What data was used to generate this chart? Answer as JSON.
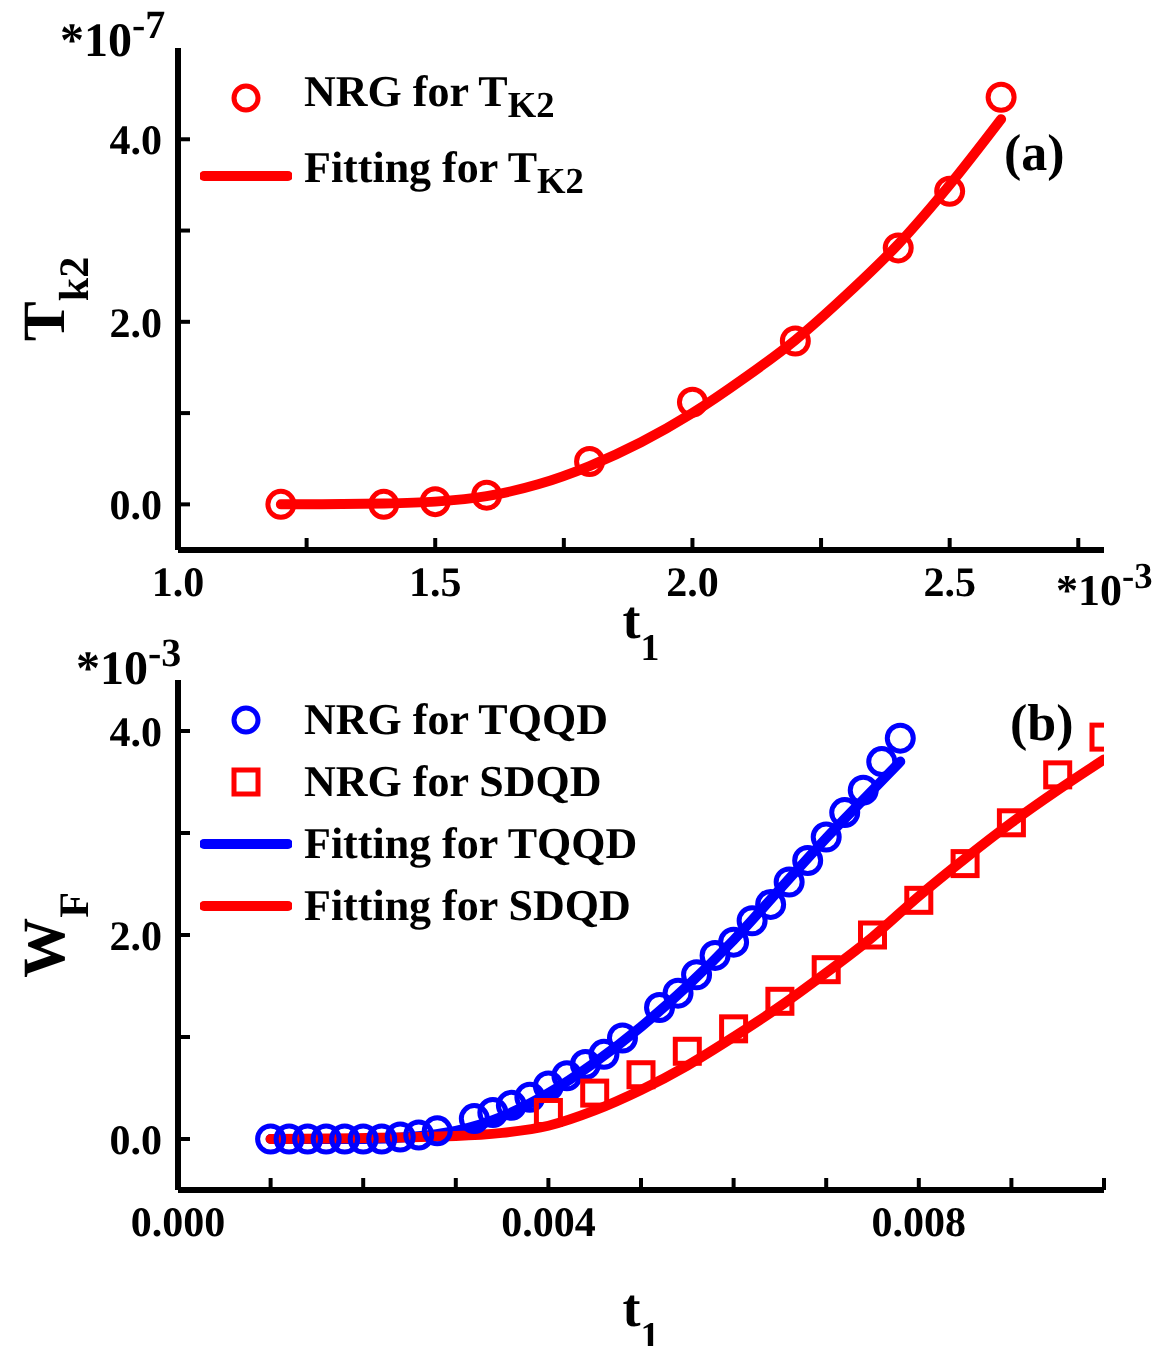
{
  "chart_data": [
    {
      "type": "scatter",
      "xlabel": "t$_{1}$",
      "ylabel": "T$_{k2}$",
      "legend": "top left",
      "annotations": [
        "(a)",
        "*10$^{-7}$",
        "*10$^{-3}$"
      ],
      "xlim": [
        1.0,
        2.8
      ],
      "xticks": [
        {
          "value": 1.0,
          "label": "1.0"
        },
        {
          "value": 1.25,
          "label": null
        },
        1.5,
        {
          "value": 1.75,
          "label": null
        },
        {
          "value": 2.0,
          "label": "2.0"
        },
        {
          "value": 2.25,
          "label": null
        },
        2.5,
        {
          "value": 2.75,
          "label": null
        }
      ],
      "ylim": [
        -0.5,
        5.0
      ],
      "yticks": [
        {
          "value": 0,
          "label": "0.0"
        },
        {
          "value": 1,
          "label": null
        },
        {
          "value": 2,
          "label": "2.0"
        },
        {
          "value": 3,
          "label": null
        },
        {
          "value": 4,
          "label": "4.0"
        }
      ],
      "series": [
        {
          "name": "NRG for T$_{K2}$",
          "marker": "circle",
          "color": "#ff0000",
          "x": [
            1.2,
            1.4,
            1.5,
            1.6,
            1.8,
            2.0,
            2.2,
            2.4,
            2.5,
            2.6
          ],
          "values": [
            0.0,
            0.0,
            0.03,
            0.1,
            0.47,
            1.12,
            1.79,
            2.81,
            3.43,
            4.46
          ]
        },
        {
          "name": "Fitting for T$_{K2}$",
          "type": "line",
          "color": "#ff0000",
          "x": [
            1.2,
            1.4,
            1.5,
            1.6,
            1.7,
            1.8,
            1.9,
            2.0,
            2.1,
            2.2,
            2.3,
            2.4,
            2.5,
            2.6
          ],
          "values": [
            0.0,
            0.01,
            0.03,
            0.09,
            0.22,
            0.42,
            0.68,
            1.0,
            1.38,
            1.8,
            2.3,
            2.85,
            3.5,
            4.22
          ]
        }
      ]
    },
    {
      "type": "scatter",
      "xlabel": "t$_{1}$",
      "ylabel": "W$_{F}$",
      "legend": "top left",
      "annotations": [
        "(b)",
        "*10$^{-3}$"
      ],
      "xlim": [
        0,
        0.01
      ],
      "xticks": [
        {
          "value": 0,
          "label": "0.000"
        },
        {
          "value": 0.001,
          "label": null
        },
        {
          "value": 0.002,
          "label": null
        },
        {
          "value": 0.003,
          "label": null
        },
        0.004,
        {
          "value": 0.005,
          "label": null
        },
        {
          "value": 0.006,
          "label": null
        },
        {
          "value": 0.007,
          "label": null
        },
        0.008,
        {
          "value": 0.009,
          "label": null
        },
        {
          "value": 0.01,
          "label": null
        }
      ],
      "ylim": [
        -0.5,
        4.5
      ],
      "yticks": [
        {
          "value": 0,
          "label": "0.0"
        },
        {
          "value": 1,
          "label": null
        },
        {
          "value": 2,
          "label": "2.0"
        },
        {
          "value": 3,
          "label": null
        },
        {
          "value": 4,
          "label": "4.0"
        }
      ],
      "series": [
        {
          "name": "NRG for TQQD",
          "marker": "circle",
          "color": "#0000ff",
          "x": [
            0.001,
            0.0012,
            0.0014,
            0.0016,
            0.0018,
            0.002,
            0.0022,
            0.0024,
            0.0026,
            0.0028,
            0.0032,
            0.0034,
            0.0036,
            0.0038,
            0.004,
            0.0042,
            0.0044,
            0.0046,
            0.0048,
            0.0052,
            0.0054,
            0.0056,
            0.0058,
            0.006,
            0.0062,
            0.0064,
            0.0066,
            0.0068,
            0.007,
            0.0072,
            0.0074,
            0.0076,
            0.0078
          ],
          "values": [
            0.0,
            0.0,
            0.0,
            0.0,
            0.0,
            0.0,
            0.0,
            0.02,
            0.04,
            0.08,
            0.2,
            0.26,
            0.33,
            0.41,
            0.52,
            0.62,
            0.73,
            0.83,
            0.99,
            1.29,
            1.43,
            1.61,
            1.8,
            1.93,
            2.14,
            2.3,
            2.52,
            2.73,
            2.96,
            3.2,
            3.42,
            3.7,
            3.93
          ]
        },
        {
          "name": "NRG for SDQD",
          "marker": "square",
          "color": "#ff0000",
          "x": [
            0.004,
            0.0045,
            0.005,
            0.0055,
            0.006,
            0.0065,
            0.007,
            0.0075,
            0.008,
            0.0085,
            0.009,
            0.0095,
            0.01
          ],
          "values": [
            0.26,
            0.45,
            0.63,
            0.86,
            1.08,
            1.35,
            1.66,
            2.0,
            2.34,
            2.7,
            3.1,
            3.57,
            3.94
          ]
        },
        {
          "name": "Fitting for TQQD",
          "type": "line",
          "color": "#0000ff",
          "x": [
            0.001,
            0.002,
            0.0025,
            0.003,
            0.0035,
            0.004,
            0.0045,
            0.005,
            0.0055,
            0.006,
            0.0065,
            0.007,
            0.0075,
            0.0078
          ],
          "values": [
            0.0,
            0.0,
            0.02,
            0.08,
            0.22,
            0.45,
            0.75,
            1.1,
            1.5,
            1.95,
            2.45,
            2.95,
            3.42,
            3.7
          ]
        },
        {
          "name": "Fitting for SDQD",
          "type": "line",
          "color": "#ff0000",
          "x": [
            0.001,
            0.003,
            0.0035,
            0.004,
            0.0045,
            0.005,
            0.0055,
            0.006,
            0.0065,
            0.007,
            0.0075,
            0.008,
            0.0085,
            0.009,
            0.0095,
            0.01
          ],
          "values": [
            0.0,
            0.03,
            0.06,
            0.13,
            0.28,
            0.48,
            0.72,
            1.0,
            1.3,
            1.63,
            1.98,
            2.38,
            2.75,
            3.1,
            3.42,
            3.72
          ]
        }
      ]
    }
  ]
}
